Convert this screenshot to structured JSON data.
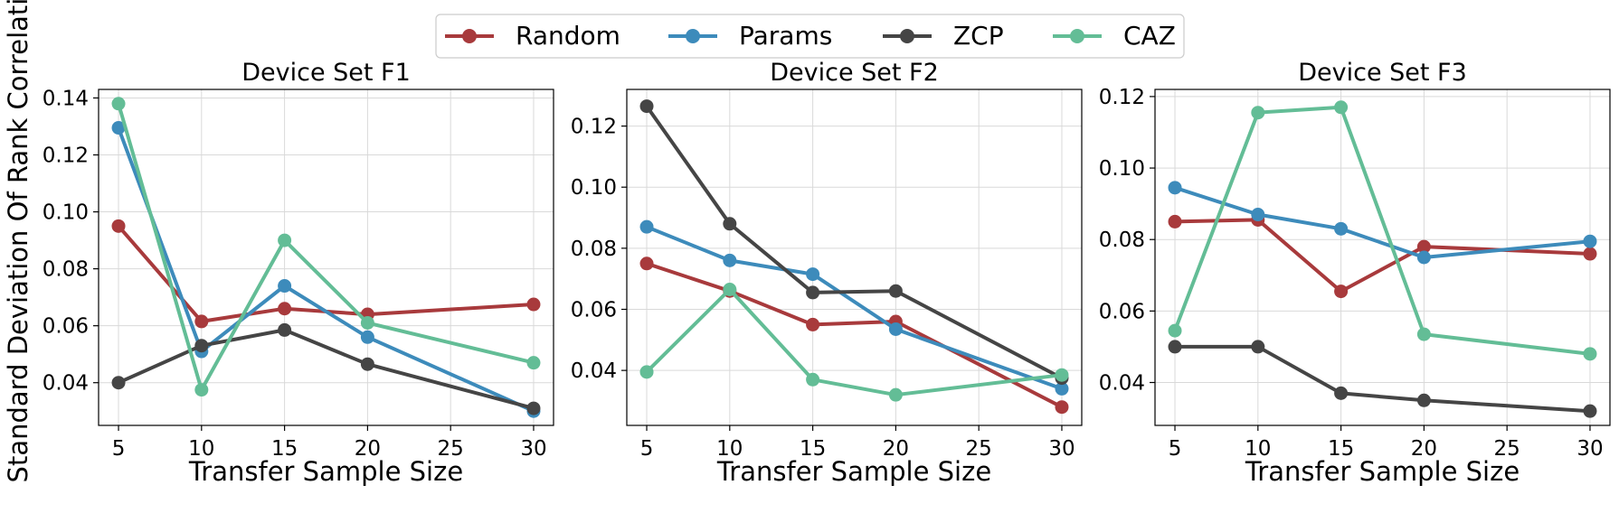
{
  "figure": {
    "ylabel": "Standard Deviation Of Rank Correlation"
  },
  "legend": {
    "items": [
      {
        "name": "Random",
        "color": "#a83a3c"
      },
      {
        "name": "Params",
        "color": "#3d8bbb"
      },
      {
        "name": "ZCP",
        "color": "#454545"
      },
      {
        "name": "CAZ",
        "color": "#63bd96"
      }
    ],
    "placement": "top-center"
  },
  "chart_data": [
    {
      "type": "line",
      "title": "Device Set F1",
      "xlabel": "Transfer Sample Size",
      "ylabel": "Standard Deviation Of Rank Correlation",
      "x": [
        5,
        10,
        15,
        20,
        30
      ],
      "xticks": [
        5,
        10,
        15,
        20,
        25,
        30
      ],
      "xlim": [
        3.8,
        31.2
      ],
      "ylim": [
        0.025,
        0.143
      ],
      "yticks": [
        0.04,
        0.06,
        0.08,
        0.1,
        0.12,
        0.14
      ],
      "yticklabels": [
        "0.04",
        "0.06",
        "0.08",
        "0.10",
        "0.12",
        "0.14"
      ],
      "grid": true,
      "series": [
        {
          "name": "Random",
          "color": "#a83a3c",
          "values": [
            0.095,
            0.0615,
            0.066,
            0.064,
            0.0675
          ]
        },
        {
          "name": "Params",
          "color": "#3d8bbb",
          "values": [
            0.1295,
            0.051,
            0.074,
            0.056,
            0.03
          ]
        },
        {
          "name": "ZCP",
          "color": "#454545",
          "values": [
            0.04,
            0.053,
            0.0585,
            0.0465,
            0.031
          ]
        },
        {
          "name": "CAZ",
          "color": "#63bd96",
          "values": [
            0.138,
            0.0375,
            0.09,
            0.061,
            0.047
          ]
        }
      ]
    },
    {
      "type": "line",
      "title": "Device Set F2",
      "xlabel": "Transfer Sample Size",
      "ylabel": "",
      "x": [
        5,
        10,
        15,
        20,
        30
      ],
      "xticks": [
        5,
        10,
        15,
        20,
        25,
        30
      ],
      "xlim": [
        3.8,
        31.2
      ],
      "ylim": [
        0.022,
        0.132
      ],
      "yticks": [
        0.04,
        0.06,
        0.08,
        0.1,
        0.12
      ],
      "yticklabels": [
        "0.04",
        "0.06",
        "0.08",
        "0.10",
        "0.12"
      ],
      "grid": true,
      "series": [
        {
          "name": "Random",
          "color": "#a83a3c",
          "values": [
            0.075,
            0.066,
            0.055,
            0.056,
            0.028
          ]
        },
        {
          "name": "Params",
          "color": "#3d8bbb",
          "values": [
            0.087,
            0.076,
            0.0715,
            0.0535,
            0.034
          ]
        },
        {
          "name": "ZCP",
          "color": "#454545",
          "values": [
            0.1265,
            0.088,
            0.0655,
            0.066,
            0.0375
          ]
        },
        {
          "name": "CAZ",
          "color": "#63bd96",
          "values": [
            0.0395,
            0.0665,
            0.037,
            0.032,
            0.0385
          ]
        }
      ]
    },
    {
      "type": "line",
      "title": "Device Set F3",
      "xlabel": "Transfer Sample Size",
      "ylabel": "",
      "x": [
        5,
        10,
        15,
        20,
        30
      ],
      "xticks": [
        5,
        10,
        15,
        20,
        25,
        30
      ],
      "xlim": [
        3.8,
        31.2
      ],
      "ylim": [
        0.028,
        0.122
      ],
      "yticks": [
        0.04,
        0.06,
        0.08,
        0.1,
        0.12
      ],
      "yticklabels": [
        "0.04",
        "0.06",
        "0.08",
        "0.10",
        "0.12"
      ],
      "grid": true,
      "series": [
        {
          "name": "Random",
          "color": "#a83a3c",
          "values": [
            0.085,
            0.0855,
            0.0655,
            0.078,
            0.076
          ]
        },
        {
          "name": "Params",
          "color": "#3d8bbb",
          "values": [
            0.0945,
            0.087,
            0.083,
            0.075,
            0.0795
          ]
        },
        {
          "name": "ZCP",
          "color": "#454545",
          "values": [
            0.05,
            0.05,
            0.037,
            0.035,
            0.032
          ]
        },
        {
          "name": "CAZ",
          "color": "#63bd96",
          "values": [
            0.0545,
            0.1155,
            0.117,
            0.0535,
            0.048
          ]
        }
      ]
    }
  ]
}
